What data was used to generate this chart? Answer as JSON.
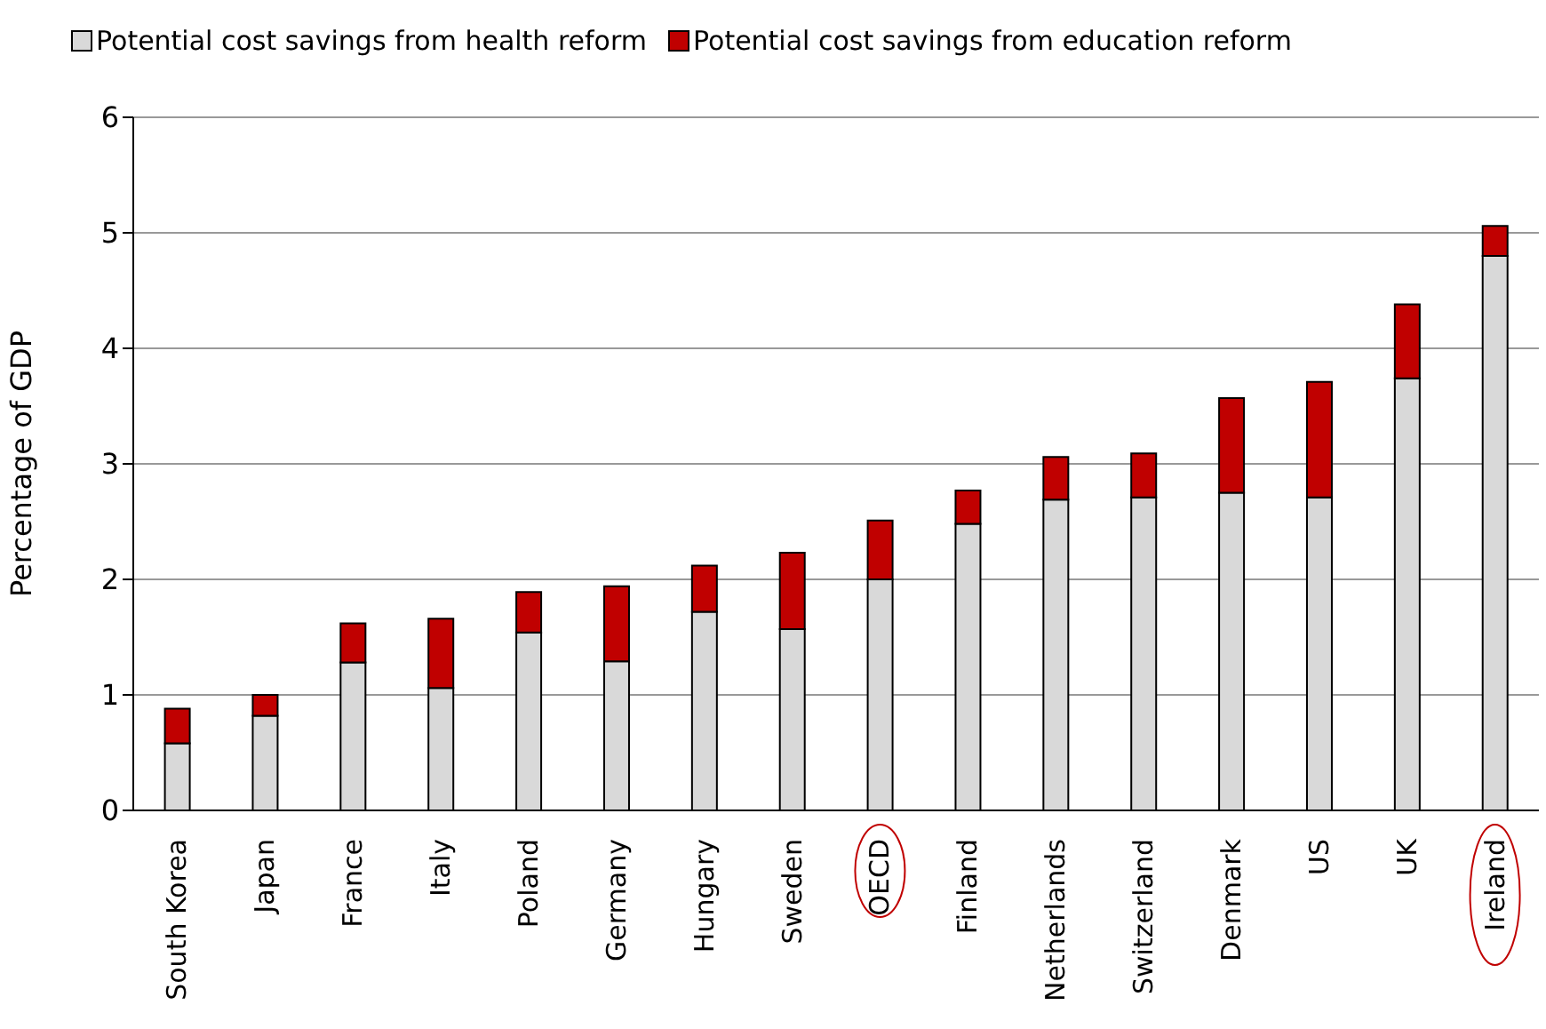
{
  "chart_data": {
    "type": "bar",
    "stacked": true,
    "ylabel": "Percentage of GDP",
    "categories": [
      "South Korea",
      "Japan",
      "France",
      "Italy",
      "Poland",
      "Germany",
      "Hungary",
      "Sweden",
      "OECD",
      "Finland",
      "Netherlands",
      "Switzerland",
      "Denmark",
      "US",
      "UK",
      "Ireland"
    ],
    "series": [
      {
        "name": "Potential cost savings from health reform",
        "color": "#d9d9d9",
        "values": [
          0.58,
          0.82,
          1.28,
          1.06,
          1.54,
          1.29,
          1.72,
          1.57,
          2.0,
          2.48,
          2.69,
          2.71,
          2.75,
          2.71,
          3.74,
          4.8
        ]
      },
      {
        "name": "Potential cost savings from education reform",
        "color": "#c00000",
        "values": [
          0.3,
          0.18,
          0.34,
          0.6,
          0.35,
          0.65,
          0.4,
          0.66,
          0.51,
          0.29,
          0.37,
          0.38,
          0.82,
          1.0,
          0.64,
          0.26
        ]
      }
    ],
    "ylim": [
      0,
      6
    ],
    "yticks": [
      0,
      1,
      2,
      3,
      4,
      5,
      6
    ],
    "grid": "y",
    "legend": "top"
  }
}
